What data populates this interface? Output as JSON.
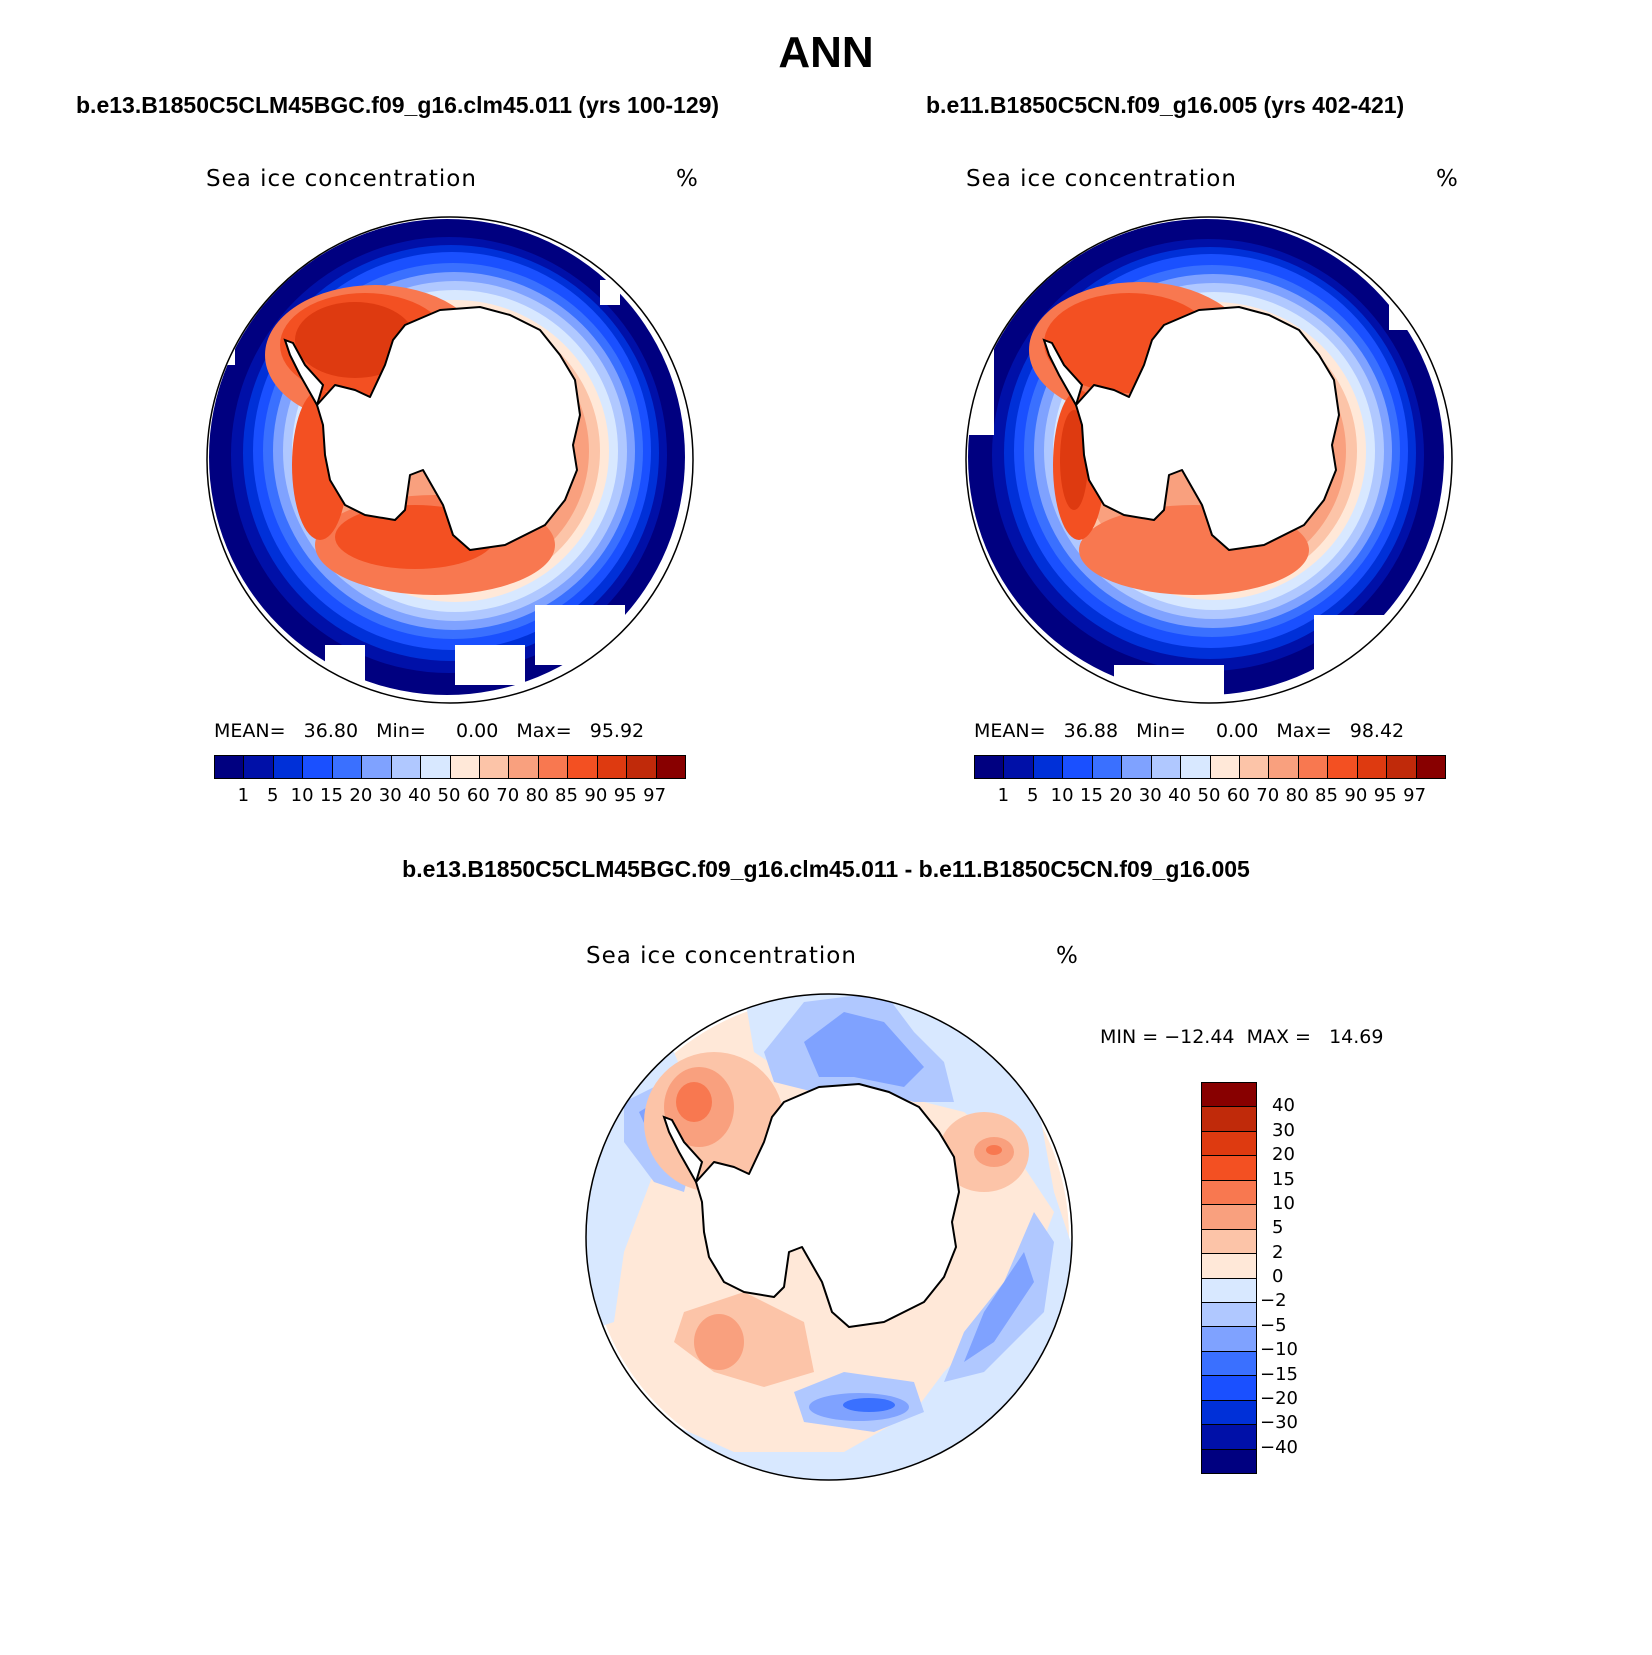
{
  "main_title": "ANN",
  "panels": [
    {
      "title": "b.e13.B1850C5CLM45BGC.f09_g16.clm45.011 (yrs 100-129)",
      "variable": "Sea ice concentration",
      "units": "%",
      "stats": "MEAN=   36.80   Min=     0.00   Max=   95.92"
    },
    {
      "title": "b.e11.B1850C5CN.f09_g16.005 (yrs 402-421)",
      "variable": "Sea ice concentration",
      "units": "%",
      "stats": "MEAN=   36.88   Min=     0.00   Max=   98.42"
    }
  ],
  "diff_panel": {
    "title": "b.e13.B1850C5CLM45BGC.f09_g16.clm45.011 - b.e11.B1850C5CN.f09_g16.005",
    "variable": "Sea ice concentration",
    "units": "%",
    "stats": "MIN = −12.44  MAX =   14.69"
  },
  "chart_data": [
    {
      "type": "heatmap",
      "title": "b.e13.B1850C5CLM45BGC.f09_g16.clm45.011 (yrs 100-129)",
      "variable": "Sea ice concentration",
      "units": "%",
      "projection": "south-polar-stereographic",
      "mean": 36.8,
      "min": 0.0,
      "max": 95.92,
      "colorbar_levels": [
        "1",
        "5",
        "10",
        "15",
        "20",
        "30",
        "40",
        "50",
        "60",
        "70",
        "80",
        "85",
        "90",
        "95",
        "97"
      ],
      "colorbar_colors": [
        "#000080",
        "#0010a8",
        "#0030d8",
        "#1a50ff",
        "#3a70ff",
        "#7fa2ff",
        "#b0c8ff",
        "#d8e8ff",
        "#ffe8d8",
        "#fcc4a8",
        "#f9a07e",
        "#f87850",
        "#f35022",
        "#de3a10",
        "#c02a0a",
        "#880000"
      ]
    },
    {
      "type": "heatmap",
      "title": "b.e11.B1850C5CN.f09_g16.005 (yrs 402-421)",
      "variable": "Sea ice concentration",
      "units": "%",
      "projection": "south-polar-stereographic",
      "mean": 36.88,
      "min": 0.0,
      "max": 98.42,
      "colorbar_levels": [
        "1",
        "5",
        "10",
        "15",
        "20",
        "30",
        "40",
        "50",
        "60",
        "70",
        "80",
        "85",
        "90",
        "95",
        "97"
      ],
      "colorbar_colors": [
        "#000080",
        "#0010a8",
        "#0030d8",
        "#1a50ff",
        "#3a70ff",
        "#7fa2ff",
        "#b0c8ff",
        "#d8e8ff",
        "#ffe8d8",
        "#fcc4a8",
        "#f9a07e",
        "#f87850",
        "#f35022",
        "#de3a10",
        "#c02a0a",
        "#880000"
      ]
    },
    {
      "type": "heatmap",
      "title": "b.e13.B1850C5CLM45BGC.f09_g16.clm45.011 - b.e11.B1850C5CN.f09_g16.005",
      "variable": "Sea ice concentration",
      "units": "%",
      "projection": "south-polar-stereographic",
      "min": -12.44,
      "max": 14.69,
      "colorbar_levels": [
        "40",
        "30",
        "20",
        "15",
        "10",
        "5",
        "2",
        "0",
        "−2",
        "−5",
        "−10",
        "−15",
        "−20",
        "−30",
        "−40"
      ],
      "colorbar_colors": [
        "#880000",
        "#c02a0a",
        "#de3a10",
        "#f35022",
        "#f87850",
        "#f9a07e",
        "#fcc4a8",
        "#ffe8d8",
        "#d8e8ff",
        "#b0c8ff",
        "#7fa2ff",
        "#3a70ff",
        "#1a50ff",
        "#0030d8",
        "#0010a8",
        "#000080"
      ]
    }
  ]
}
